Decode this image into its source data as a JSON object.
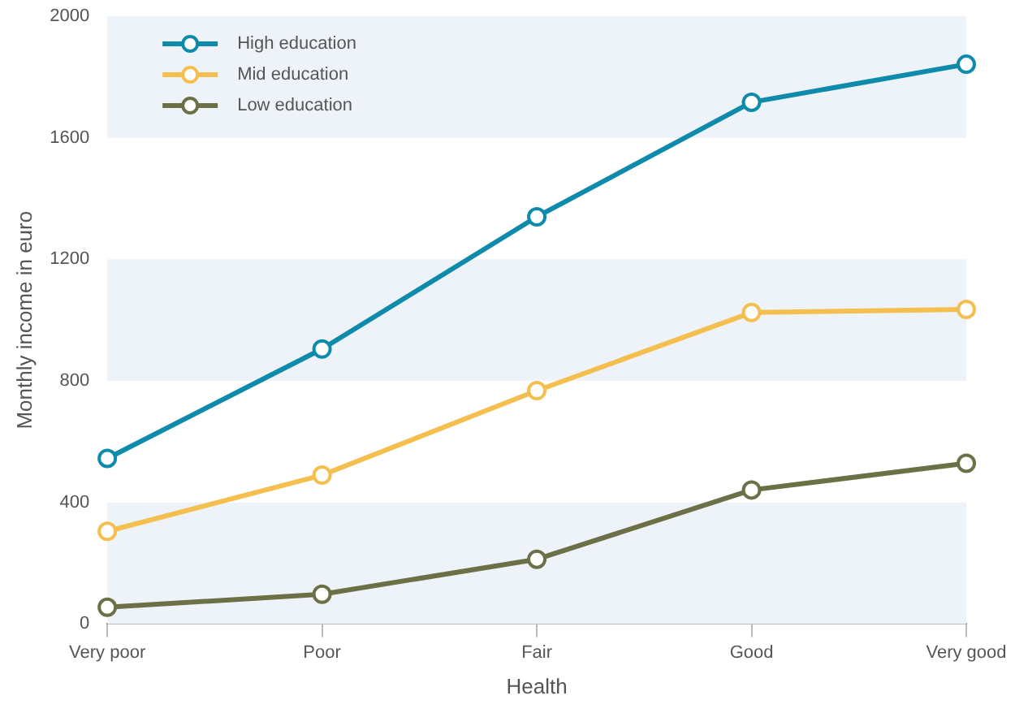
{
  "chart_data": {
    "type": "line",
    "xlabel": "Health",
    "ylabel": "Monthly income in euro",
    "categories": [
      "Very poor",
      "Poor",
      "Fair",
      "Good",
      "Very good"
    ],
    "series": [
      {
        "name": "High education",
        "color": "#0e8aab",
        "values": [
          545,
          905,
          1340,
          1717,
          1842
        ]
      },
      {
        "name": "Mid education",
        "color": "#f5bf4f",
        "values": [
          305,
          490,
          768,
          1025,
          1035
        ]
      },
      {
        "name": "Low education",
        "color": "#6b7047",
        "values": [
          55,
          98,
          213,
          441,
          529
        ]
      }
    ],
    "ylim": [
      0,
      2000
    ],
    "yticks": [
      0,
      400,
      800,
      1200,
      1600,
      2000
    ],
    "bands": [
      {
        "axis": "y",
        "from": 0,
        "to": 400,
        "color": "#eef3f9"
      },
      {
        "axis": "y",
        "from": 800,
        "to": 1200,
        "color": "#eef3f9"
      },
      {
        "axis": "y",
        "from": 1600,
        "to": 2000,
        "color": "#eef3f9"
      }
    ],
    "legend": "top left",
    "marker": "circle",
    "line_style": "solid"
  }
}
